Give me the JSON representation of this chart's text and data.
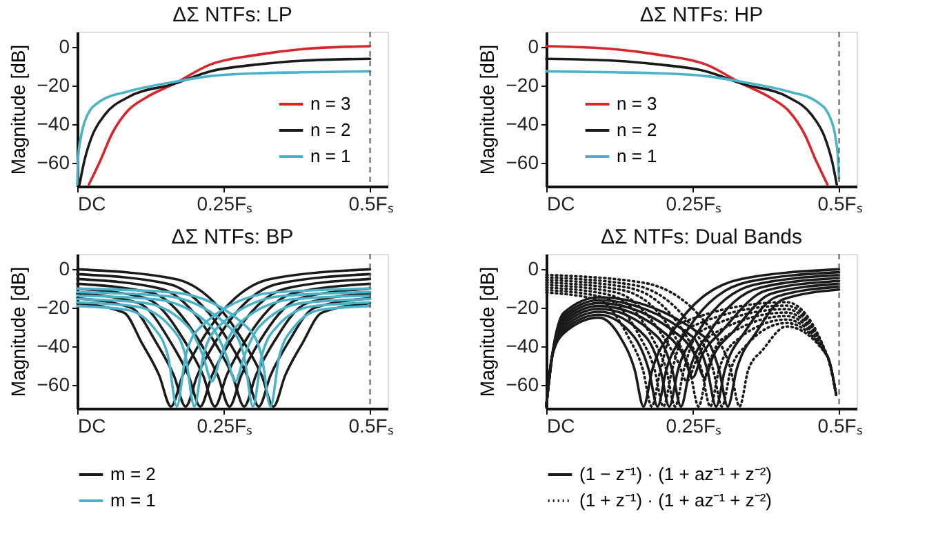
{
  "chart_data": [
    {
      "type": "line",
      "title": "ΔΣ NTFs: LP",
      "ylabel": "Magnitude [dB]",
      "xlim": [
        0,
        0.53
      ],
      "xticks": [
        {
          "value": 0,
          "label": "DC"
        },
        {
          "value": 0.25,
          "label": "0.25Fₛ"
        },
        {
          "value": 0.5,
          "label": "0.5Fₛ"
        }
      ],
      "ylim": [
        -72,
        8
      ],
      "yticks": [
        0,
        -20,
        -40,
        -60
      ],
      "legend": "right",
      "ref_lines": [
        {
          "axis": "x",
          "value": 0.5,
          "color": "#555555",
          "line_style": "dashed"
        }
      ],
      "series": [
        {
          "name": "n = 3",
          "color": "#d7262b",
          "x": [
            0.02,
            0.039,
            0.059,
            0.086,
            0.118,
            0.165,
            0.227,
            0.306,
            0.384,
            0.5
          ],
          "values": [
            -71,
            -59,
            -45,
            -33,
            -26,
            -19,
            -9,
            -4,
            -1,
            0.5
          ]
        },
        {
          "name": "n = 2",
          "color": "#1a1a1a",
          "x": [
            0.004,
            0.012,
            0.024,
            0.047,
            0.086,
            0.165,
            0.227,
            0.306,
            0.384,
            0.5
          ],
          "values": [
            -71,
            -59,
            -47,
            -35,
            -26,
            -19,
            -12.5,
            -9,
            -7,
            -6
          ]
        },
        {
          "name": "n = 1",
          "color": "#4ab3c8",
          "x": [
            0,
            0.0016,
            0.006,
            0.016,
            0.039,
            0.086,
            0.165,
            0.227,
            0.306,
            0.384,
            0.5
          ],
          "values": [
            -71,
            -57,
            -47,
            -36,
            -28,
            -23,
            -18,
            -15,
            -13.5,
            -13,
            -12.5
          ]
        }
      ]
    },
    {
      "type": "line",
      "title": "ΔΣ NTFs: HP",
      "ylabel": "Magnitude [dB]",
      "xlim": [
        0,
        0.53
      ],
      "xticks": [
        {
          "value": 0,
          "label": "DC"
        },
        {
          "value": 0.25,
          "label": "0.25Fₛ"
        },
        {
          "value": 0.5,
          "label": "0.5Fₛ"
        }
      ],
      "ylim": [
        -72,
        8
      ],
      "yticks": [
        0,
        -20,
        -40,
        -60
      ],
      "legend": "left",
      "ref_lines": [
        {
          "axis": "x",
          "value": 0.5,
          "color": "#555555",
          "line_style": "dashed"
        }
      ],
      "series": [
        {
          "name": "n = 3",
          "color": "#d7262b",
          "x": [
            0,
            0.116,
            0.194,
            0.273,
            0.335,
            0.382,
            0.414,
            0.441,
            0.461,
            0.48
          ],
          "values": [
            0.5,
            -1,
            -4,
            -9,
            -19,
            -26,
            -33,
            -45,
            -59,
            -71
          ]
        },
        {
          "name": "n = 2",
          "color": "#1a1a1a",
          "x": [
            0,
            0.116,
            0.194,
            0.273,
            0.335,
            0.414,
            0.453,
            0.476,
            0.488,
            0.496
          ],
          "values": [
            -6,
            -7,
            -9,
            -12.5,
            -19,
            -26,
            -35,
            -47,
            -59,
            -71
          ]
        },
        {
          "name": "n = 1",
          "color": "#4ab3c8",
          "x": [
            0,
            0.116,
            0.194,
            0.273,
            0.335,
            0.414,
            0.461,
            0.484,
            0.494,
            0.498,
            0.5
          ],
          "values": [
            -12.5,
            -13,
            -13.5,
            -15,
            -18,
            -23,
            -28,
            -36,
            -47,
            -57,
            -68
          ]
        }
      ]
    },
    {
      "type": "line",
      "title": "ΔΣ NTFs: BP",
      "ylabel": "Magnitude [dB]",
      "xlim": [
        0,
        0.53
      ],
      "xticks": [
        {
          "value": 0,
          "label": "DC"
        },
        {
          "value": 0.25,
          "label": "0.25Fₛ"
        },
        {
          "value": 0.5,
          "label": "0.5Fₛ"
        }
      ],
      "ylim": [
        -72,
        8
      ],
      "yticks": [
        0,
        -20,
        -40,
        -60
      ],
      "legend": "bottom",
      "ref_lines": [
        {
          "axis": "x",
          "value": 0.5,
          "color": "#555555",
          "line_style": "dashed"
        }
      ],
      "series": [
        {
          "name": "m = 2",
          "color": "#1a1a1a",
          "x": [
            0,
            0.08,
            0.11,
            0.14,
            0.16,
            0.18,
            0.21,
            0.33,
            0.5
          ],
          "values": [
            -17.5,
            -22.5,
            -38,
            -55,
            -71,
            -55,
            -38,
            -5,
            0
          ]
        },
        {
          "color": "#1a1a1a",
          "x": [
            0,
            0.0925,
            0.135,
            0.165,
            0.185,
            0.205,
            0.235,
            0.3425,
            0.5
          ],
          "values": [
            -15,
            -20,
            -38,
            -55,
            -71,
            -55,
            -38,
            -7.5,
            -2.5
          ]
        },
        {
          "color": "#1a1a1a",
          "x": [
            0,
            0.105,
            0.16,
            0.19,
            0.21,
            0.23,
            0.26,
            0.355,
            0.5
          ],
          "values": [
            -12.5,
            -17.5,
            -38,
            -55,
            -71,
            -55,
            -38,
            -10,
            -5
          ]
        },
        {
          "color": "#1a1a1a",
          "x": [
            0,
            0.1175,
            0.185,
            0.215,
            0.235,
            0.255,
            0.285,
            0.3675,
            0.5
          ],
          "values": [
            -10,
            -15,
            -38,
            -55,
            -71,
            -55,
            -38,
            -12.5,
            -7.5
          ]
        },
        {
          "color": "#1a1a1a",
          "x": [
            0,
            0.13,
            0.21,
            0.24,
            0.26,
            0.28,
            0.31,
            0.38,
            0.5
          ],
          "values": [
            -7.5,
            -12.5,
            -38,
            -55,
            -71,
            -55,
            -38,
            -15,
            -10
          ]
        },
        {
          "color": "#1a1a1a",
          "x": [
            0,
            0.1425,
            0.235,
            0.265,
            0.285,
            0.305,
            0.335,
            0.3925,
            0.5
          ],
          "values": [
            -5,
            -10,
            -38,
            -55,
            -71,
            -55,
            -38,
            -17.5,
            -12.5
          ]
        },
        {
          "color": "#1a1a1a",
          "x": [
            0,
            0.155,
            0.26,
            0.29,
            0.31,
            0.33,
            0.36,
            0.405,
            0.5
          ],
          "values": [
            -2.5,
            -7.5,
            -38,
            -55,
            -71,
            -55,
            -38,
            -20,
            -15
          ]
        },
        {
          "color": "#1a1a1a",
          "x": [
            0,
            0.1675,
            0.285,
            0.315,
            0.335,
            0.355,
            0.385,
            0.4175,
            0.5
          ],
          "values": [
            0,
            -5,
            -38,
            -55,
            -71,
            -55,
            -38,
            -22.5,
            -17.5
          ]
        },
        {
          "name": "m = 1",
          "color": "#4ab3c8",
          "x": [
            0,
            0.085,
            0.13,
            0.155,
            0.17,
            0.185,
            0.21,
            0.335,
            0.5
          ],
          "values": [
            -19,
            -21,
            -30,
            -45,
            -71,
            -45,
            -30,
            -12,
            -10
          ]
        },
        {
          "color": "#4ab3c8",
          "x": [
            0,
            0.1,
            0.16,
            0.185,
            0.2,
            0.215,
            0.24,
            0.35,
            0.5
          ],
          "values": [
            -17.2,
            -19.2,
            -30,
            -45,
            -71,
            -45,
            -30,
            -13.8,
            -11.8
          ]
        },
        {
          "color": "#4ab3c8",
          "x": [
            0,
            0.115,
            0.19,
            0.215,
            0.23,
            0.245,
            0.27,
            0.365,
            0.5
          ],
          "values": [
            -15.4,
            -17.4,
            -30,
            -45,
            -58,
            -45,
            -30,
            -15.6,
            -13.6
          ]
        },
        {
          "color": "#4ab3c8",
          "x": [
            0,
            0.135,
            0.23,
            0.255,
            0.27,
            0.285,
            0.31,
            0.385,
            0.5
          ],
          "values": [
            -13.6,
            -15.6,
            -30,
            -45,
            -58,
            -45,
            -30,
            -17.4,
            -15.4
          ]
        },
        {
          "color": "#4ab3c8",
          "x": [
            0,
            0.15,
            0.26,
            0.285,
            0.3,
            0.315,
            0.34,
            0.4,
            0.5
          ],
          "values": [
            -11.8,
            -13.8,
            -30,
            -45,
            -71,
            -45,
            -30,
            -19.2,
            -17.2
          ]
        },
        {
          "color": "#4ab3c8",
          "x": [
            0,
            0.165,
            0.29,
            0.315,
            0.33,
            0.345,
            0.37,
            0.415,
            0.5
          ],
          "values": [
            -10,
            -12,
            -30,
            -45,
            -71,
            -45,
            -30,
            -21,
            -19
          ]
        }
      ]
    },
    {
      "type": "line",
      "title": "ΔΣ NTFs: Dual Bands",
      "ylabel": "Magnitude [dB]",
      "xlim": [
        0,
        0.53
      ],
      "xticks": [
        {
          "value": 0,
          "label": "DC"
        },
        {
          "value": 0.25,
          "label": "0.25Fₛ"
        },
        {
          "value": 0.5,
          "label": "0.5Fₛ"
        }
      ],
      "ylim": [
        -72,
        8
      ],
      "yticks": [
        0,
        -20,
        -40,
        -60
      ],
      "legend": "bottom",
      "ref_lines": [
        {
          "axis": "x",
          "value": 0.5,
          "color": "#555555",
          "line_style": "dashed"
        }
      ],
      "series": [
        {
          "name": "(1 − z⁻¹) · (1 + az⁻¹ + z⁻²)",
          "color": "#1a1a1a",
          "line_style": "solid",
          "x": [
            0,
            0.01,
            0.03,
            0.09,
            0.126,
            0.151,
            0.166,
            0.181,
            0.216,
            0.333,
            0.5
          ],
          "values": [
            -71,
            -45,
            -33,
            -25,
            -35,
            -52,
            -71,
            -52,
            -32,
            -5,
            0
          ]
        },
        {
          "color": "#1a1a1a",
          "line_style": "solid",
          "x": [
            0,
            0.01,
            0.03,
            0.09,
            0.15,
            0.175,
            0.19,
            0.205,
            0.24,
            0.345,
            0.5
          ],
          "values": [
            -71,
            -45,
            -31.5,
            -23.5,
            -35,
            -52,
            -71,
            -52,
            -32,
            -6.5,
            -1.5
          ]
        },
        {
          "color": "#1a1a1a",
          "line_style": "solid",
          "x": [
            0,
            0.01,
            0.03,
            0.09,
            0.17,
            0.195,
            0.21,
            0.225,
            0.26,
            0.355,
            0.5
          ],
          "values": [
            -71,
            -45,
            -30,
            -22,
            -35,
            -52,
            -71,
            -52,
            -32,
            -8,
            -3
          ]
        },
        {
          "color": "#1a1a1a",
          "line_style": "solid",
          "x": [
            0,
            0.01,
            0.03,
            0.09,
            0.19,
            0.215,
            0.23,
            0.245,
            0.28,
            0.365,
            0.5
          ],
          "values": [
            -71,
            -45,
            -28.5,
            -20.5,
            -35,
            -52,
            -71,
            -52,
            -32,
            -9.5,
            -4.5
          ]
        },
        {
          "color": "#1a1a1a",
          "line_style": "solid",
          "x": [
            0,
            0.01,
            0.03,
            0.09,
            0.21,
            0.235,
            0.25,
            0.265,
            0.3,
            0.375,
            0.5
          ],
          "values": [
            -71,
            -45,
            -27,
            -19,
            -35,
            -45,
            -56,
            -45,
            -32,
            -11,
            -6
          ]
        },
        {
          "color": "#1a1a1a",
          "line_style": "solid",
          "x": [
            0,
            0.01,
            0.03,
            0.09,
            0.23,
            0.255,
            0.27,
            0.285,
            0.32,
            0.385,
            0.5
          ],
          "values": [
            -71,
            -45,
            -25.5,
            -17.5,
            -35,
            -45,
            -56,
            -45,
            -32,
            -12.5,
            -7.5
          ]
        },
        {
          "color": "#1a1a1a",
          "line_style": "solid",
          "x": [
            0,
            0.01,
            0.03,
            0.09,
            0.25,
            0.275,
            0.29,
            0.305,
            0.34,
            0.395,
            0.5
          ],
          "values": [
            -71,
            -45,
            -24,
            -16,
            -35,
            -52,
            -71,
            -52,
            -32,
            -14,
            -9
          ]
        },
        {
          "color": "#1a1a1a",
          "line_style": "solid",
          "x": [
            0,
            0.01,
            0.03,
            0.09,
            0.27,
            0.295,
            0.31,
            0.325,
            0.36,
            0.405,
            0.5
          ],
          "values": [
            -71,
            -45,
            -22.5,
            -14.5,
            -35,
            -52,
            -71,
            -52,
            -32,
            -15.5,
            -10.5
          ]
        },
        {
          "name": "(1 + z⁻¹) · (1 + az⁻¹ + z⁻²)",
          "color": "#1a1a1a",
          "line_style": "dotted",
          "x": [
            0,
            0.09,
            0.14,
            0.165,
            0.18,
            0.195,
            0.22,
            0.41,
            0.48,
            0.495
          ],
          "values": [
            -12,
            -16,
            -35,
            -52,
            -71,
            -52,
            -29,
            -17,
            -45,
            -65
          ]
        },
        {
          "color": "#1a1a1a",
          "line_style": "dotted",
          "x": [
            0,
            0.1,
            0.16,
            0.185,
            0.2,
            0.215,
            0.24,
            0.41,
            0.48,
            0.495
          ],
          "values": [
            -10.7,
            -14.7,
            -35,
            -52,
            -71,
            -52,
            -30.8,
            -18.8,
            -45,
            -65
          ]
        },
        {
          "color": "#1a1a1a",
          "line_style": "dotted",
          "x": [
            0,
            0.11,
            0.18,
            0.205,
            0.22,
            0.235,
            0.26,
            0.41,
            0.48,
            0.495
          ],
          "values": [
            -9.4,
            -13.4,
            -35,
            -52,
            -71,
            -52,
            -32.6,
            -20.6,
            -45,
            -65
          ]
        },
        {
          "color": "#1a1a1a",
          "line_style": "dotted",
          "x": [
            0,
            0.12,
            0.2,
            0.225,
            0.24,
            0.255,
            0.28,
            0.41,
            0.48,
            0.495
          ],
          "values": [
            -8.1,
            -12.1,
            -35,
            -48,
            -58,
            -48,
            -34.4,
            -22.4,
            -45,
            -65
          ]
        },
        {
          "color": "#1a1a1a",
          "line_style": "dotted",
          "x": [
            0,
            0.13,
            0.22,
            0.245,
            0.26,
            0.275,
            0.3,
            0.41,
            0.48,
            0.495
          ],
          "values": [
            -6.8,
            -10.8,
            -35,
            -52,
            -71,
            -52,
            -36.2,
            -24.2,
            -45,
            -65
          ]
        },
        {
          "color": "#1a1a1a",
          "line_style": "dotted",
          "x": [
            0,
            0.14,
            0.24,
            0.265,
            0.28,
            0.295,
            0.32,
            0.41,
            0.48,
            0.495
          ],
          "values": [
            -5.5,
            -9.5,
            -35,
            -52,
            -71,
            -52,
            -38,
            -26,
            -45,
            -65
          ]
        },
        {
          "color": "#1a1a1a",
          "line_style": "dotted",
          "x": [
            0,
            0.15,
            0.26,
            0.285,
            0.3,
            0.315,
            0.34,
            0.41,
            0.48,
            0.495
          ],
          "values": [
            -4.2,
            -8.2,
            -35,
            -52,
            -71,
            -52,
            -39.8,
            -27.8,
            -45,
            -65
          ]
        },
        {
          "color": "#1a1a1a",
          "line_style": "dotted",
          "x": [
            0,
            0.165,
            0.29,
            0.315,
            0.33,
            0.345,
            0.37,
            0.41,
            0.48,
            0.495
          ],
          "values": [
            -2.9,
            -6.9,
            -35,
            -52,
            -71,
            -52,
            -41.6,
            -29.6,
            -45,
            -65
          ]
        }
      ]
    }
  ]
}
